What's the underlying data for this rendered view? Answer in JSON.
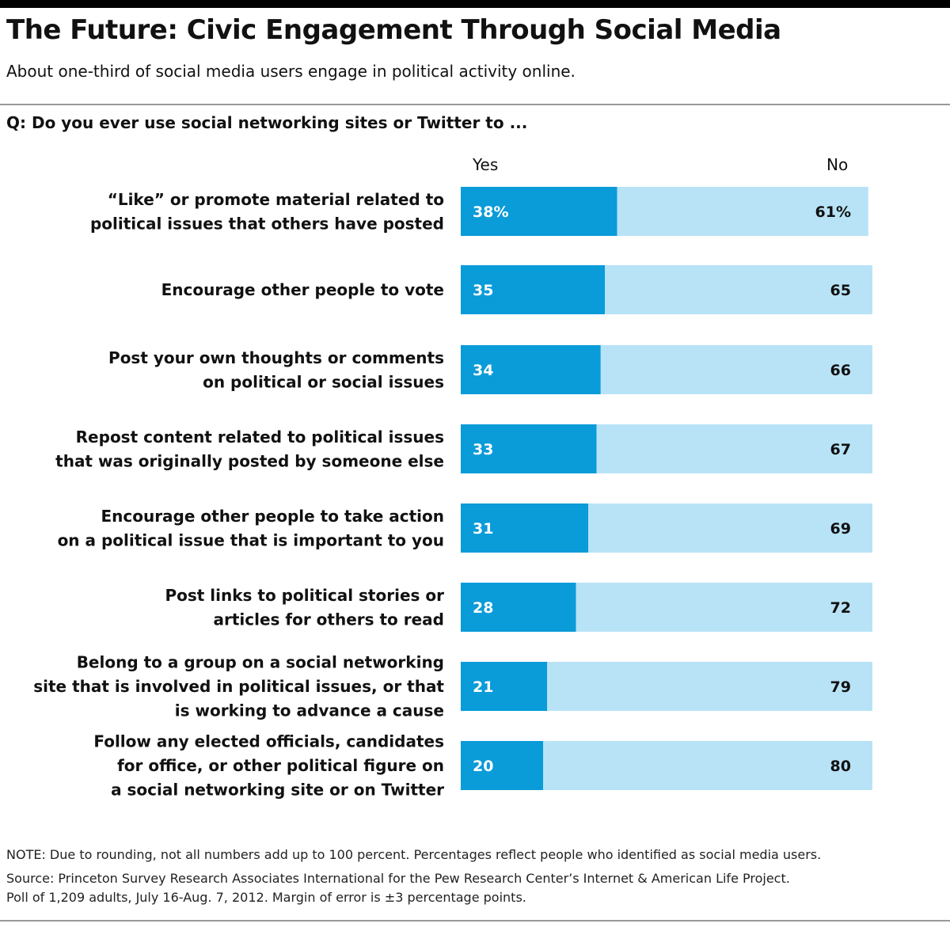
{
  "header": {
    "title": "The Future: Civic Engagement Through Social Media",
    "subtitle": "About one-third of social media users engage in political activity online.",
    "question": "Q: Do you ever use social networking sites or Twitter to ..."
  },
  "chart_data": {
    "type": "bar",
    "orientation": "horizontal",
    "stacked": true,
    "legend": "column headers above bars",
    "xlim": [
      0,
      100
    ],
    "categories": [
      [
        "“Like” or promote material related to",
        "political issues that others have posted"
      ],
      [
        "Encourage other people to vote"
      ],
      [
        "Post your own thoughts or comments",
        "on political or social issues"
      ],
      [
        "Repost content related to political issues",
        "that was originally posted by someone else"
      ],
      [
        "Encourage other people to take action",
        "on a political issue that is important to you"
      ],
      [
        "Post links to political stories or",
        "articles for others to read"
      ],
      [
        "Belong to a group on a social networking",
        "site that is involved in political issues, or that",
        "is working to advance a cause"
      ],
      [
        "Follow any elected officials, candidates",
        "for office, or other political figure on",
        "a social networking site or on Twitter"
      ]
    ],
    "series": [
      {
        "name": "Yes",
        "color": "#0a9bd9",
        "values": [
          38,
          35,
          34,
          33,
          31,
          28,
          21,
          20
        ],
        "labels": [
          "38%",
          "35",
          "34",
          "33",
          "31",
          "28",
          "21",
          "20"
        ]
      },
      {
        "name": "No",
        "color": "#b8e3f7",
        "values": [
          61,
          65,
          66,
          67,
          69,
          72,
          79,
          80
        ],
        "labels": [
          "61%",
          "65",
          "66",
          "67",
          "69",
          "72",
          "79",
          "80"
        ]
      }
    ]
  },
  "footer": {
    "note": "NOTE: Due to rounding, not all numbers add up to 100 percent. Percentages reflect people who identified as social media users.",
    "source": "Source: Princeton Survey Research Associates International for the Pew Research Center’s Internet & American Life Project.",
    "poll": "Poll of 1,209 adults, July 16-Aug. 7, 2012. Margin of error is ±3 percentage points."
  }
}
